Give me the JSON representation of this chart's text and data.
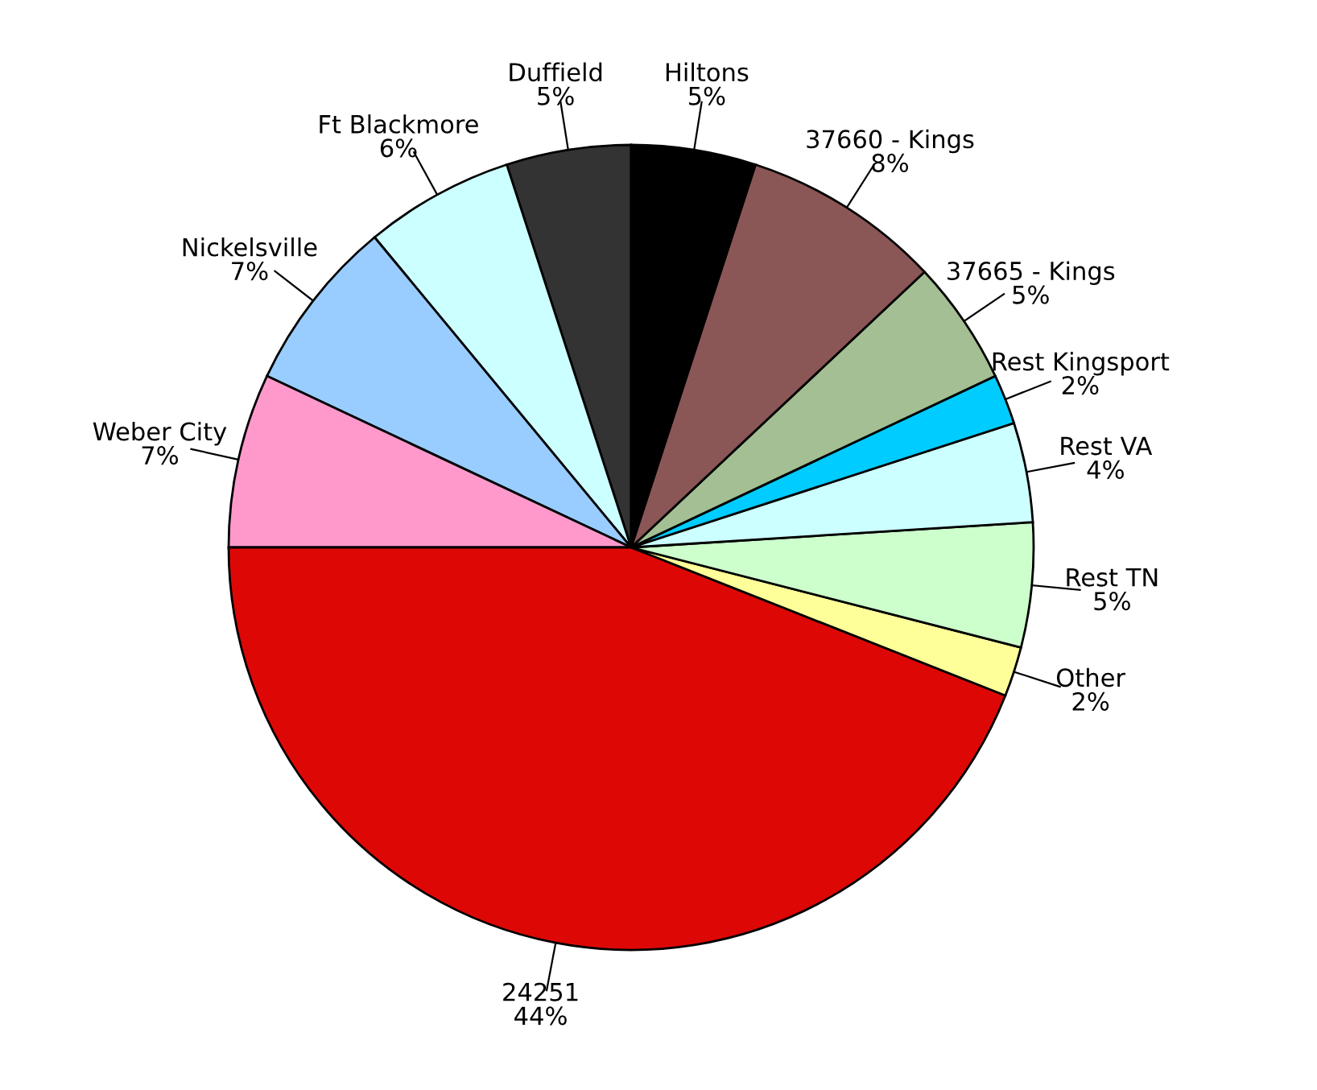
{
  "chart_data": {
    "type": "pie",
    "categories": [
      "Duffield",
      "Ft Blackmore",
      "Nickelsville",
      "Weber City",
      "24251",
      "Other",
      "Rest TN",
      "Rest VA",
      "Rest Kingsport",
      "37665 - Kings",
      "37660 - Kings",
      "Hiltons"
    ],
    "values": [
      5,
      6,
      7,
      7,
      44,
      2,
      5,
      4,
      2,
      5,
      8,
      5
    ],
    "value_labels": [
      "5%",
      "6%",
      "7%",
      "7%",
      "44%",
      "2%",
      "5%",
      "4%",
      "2%",
      "5%",
      "8%",
      "5%"
    ],
    "colors": [
      "#333333",
      "#ccffff",
      "#99ccff",
      "#ff99cc",
      "#dd0806",
      "#ffff99",
      "#ccffcc",
      "#ccffff",
      "#00ccff",
      "#a3bf93",
      "#8b5656",
      "#000000"
    ]
  }
}
